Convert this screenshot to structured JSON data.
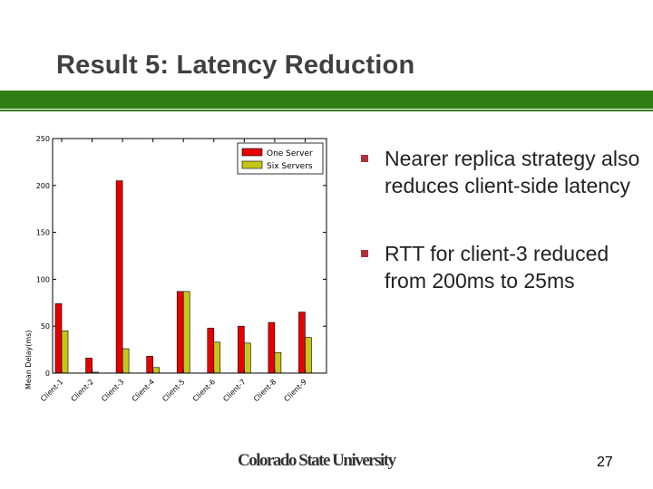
{
  "slide": {
    "title": "Result 5: Latency Reduction",
    "bullets": [
      "Nearer replica strategy also reduces client-side latency",
      "RTT for client-3 reduced from 200ms to 25ms"
    ],
    "footer_logo": "Colorado State University",
    "page_number": "27"
  },
  "colors": {
    "title_bar": "#2f7d14",
    "bullet_marker": "#b0303a",
    "one_server": "#e80000",
    "six_servers": "#c6c61a"
  },
  "chart_data": {
    "type": "bar",
    "categories": [
      "Client-1",
      "Client-2",
      "Client-3",
      "Client-4",
      "Client-5",
      "Client-6",
      "Client-7",
      "Client-8",
      "Client-9"
    ],
    "series": [
      {
        "name": "One Server",
        "values": [
          74,
          16,
          205,
          18,
          87,
          48,
          50,
          54,
          65
        ]
      },
      {
        "name": "Six Servers",
        "values": [
          45,
          1,
          26,
          6,
          87,
          33,
          32,
          22,
          38
        ]
      }
    ],
    "title": "",
    "xlabel": "",
    "ylabel": "Mean Delay(ms)",
    "ylim": [
      0,
      250
    ],
    "yticks": [
      0,
      50,
      100,
      150,
      200,
      250
    ],
    "legend_position": "top-right",
    "grid": false
  }
}
